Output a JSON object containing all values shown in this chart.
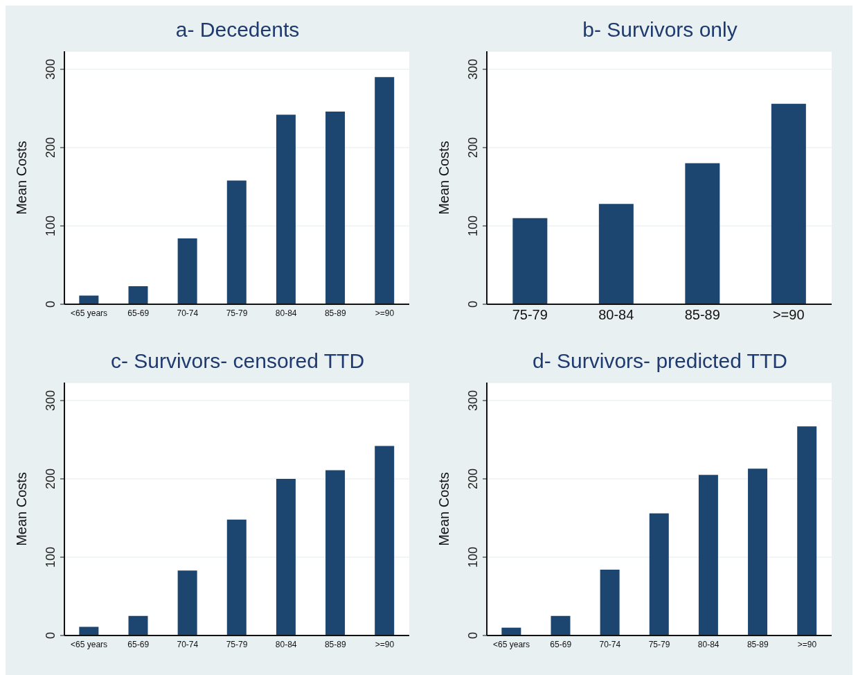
{
  "chart_data": [
    {
      "type": "bar",
      "title": "a- Decedents",
      "ylabel": "Mean Costs",
      "categories": [
        "<65 years",
        "65-69",
        "70-74",
        "75-79",
        "80-84",
        "85-89",
        ">=90"
      ],
      "values": [
        11,
        23,
        84,
        158,
        242,
        246,
        290
      ],
      "color": "#1c4670",
      "ylim": [
        0,
        323
      ],
      "yticks": [
        0,
        100,
        200,
        300
      ],
      "grid": "y"
    },
    {
      "type": "bar",
      "title": "b- Survivors only",
      "ylabel": "Mean Costs",
      "categories": [
        "75-79",
        "80-84",
        "85-89",
        ">=90"
      ],
      "values": [
        110,
        128,
        180,
        256
      ],
      "color": "#1c4670",
      "ylim": [
        0,
        323
      ],
      "yticks": [
        0,
        100,
        200,
        300
      ],
      "grid": "y"
    },
    {
      "type": "bar",
      "title": "c- Survivors- censored TTD",
      "ylabel": "Mean Costs",
      "categories": [
        "<65 years",
        "65-69",
        "70-74",
        "75-79",
        "80-84",
        "85-89",
        ">=90"
      ],
      "values": [
        11,
        25,
        83,
        148,
        200,
        211,
        242
      ],
      "color": "#1c4670",
      "ylim": [
        0,
        323
      ],
      "yticks": [
        0,
        100,
        200,
        300
      ],
      "grid": "y"
    },
    {
      "type": "bar",
      "title": "d- Survivors- predicted TTD",
      "ylabel": "Mean Costs",
      "categories": [
        "<65 years",
        "65-69",
        "70-74",
        "75-79",
        "80-84",
        "85-89",
        ">=90"
      ],
      "values": [
        10,
        25,
        84,
        156,
        205,
        213,
        267
      ],
      "color": "#1c4670",
      "ylim": [
        0,
        323
      ],
      "yticks": [
        0,
        100,
        200,
        300
      ],
      "grid": "y"
    }
  ]
}
